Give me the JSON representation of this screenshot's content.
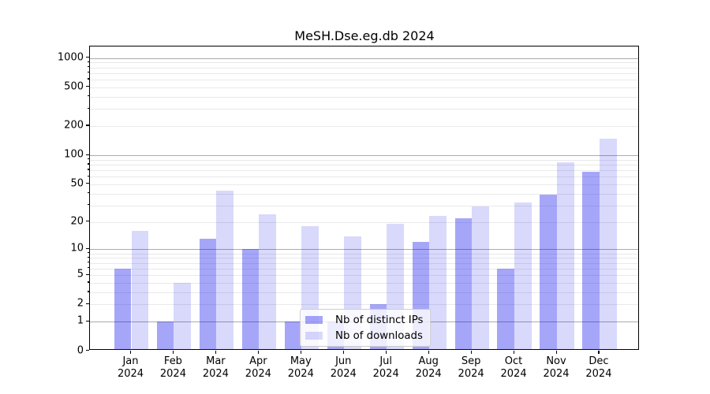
{
  "chart_data": {
    "type": "bar",
    "title": "MeSH.Dse.eg.db 2024",
    "categories": [
      [
        "Jan",
        "2024"
      ],
      [
        "Feb",
        "2024"
      ],
      [
        "Mar",
        "2024"
      ],
      [
        "Apr",
        "2024"
      ],
      [
        "May",
        "2024"
      ],
      [
        "Jun",
        "2024"
      ],
      [
        "Jul",
        "2024"
      ],
      [
        "Aug",
        "2024"
      ],
      [
        "Sep",
        "2024"
      ],
      [
        "Oct",
        "2024"
      ],
      [
        "Nov",
        "2024"
      ],
      [
        "Dec",
        "2024"
      ]
    ],
    "series": [
      {
        "name": "Nb of distinct IPs",
        "color": "rgba(0,0,238,0.35)",
        "values": [
          6,
          1,
          13,
          10,
          1,
          1,
          2,
          12,
          22,
          6,
          39,
          67
        ]
      },
      {
        "name": "Nb of downloads",
        "color": "rgba(0,0,238,0.15)",
        "values": [
          16,
          4,
          43,
          24,
          18,
          14,
          19,
          23,
          29,
          32,
          85,
          148
        ]
      }
    ],
    "xlabel": "",
    "ylabel": "",
    "yscale": "log1p",
    "ylim": [
      0,
      1310
    ],
    "yticks": [
      0,
      1,
      2,
      5,
      10,
      20,
      50,
      100,
      200,
      500,
      1000
    ],
    "grid": {
      "on": true,
      "major_color": "#ababab",
      "minor_color": "#e9e9ec"
    },
    "legend": {
      "position": "lower-center",
      "border_color": "#cccccc",
      "background": "rgba(255,255,255,0.8)"
    }
  }
}
